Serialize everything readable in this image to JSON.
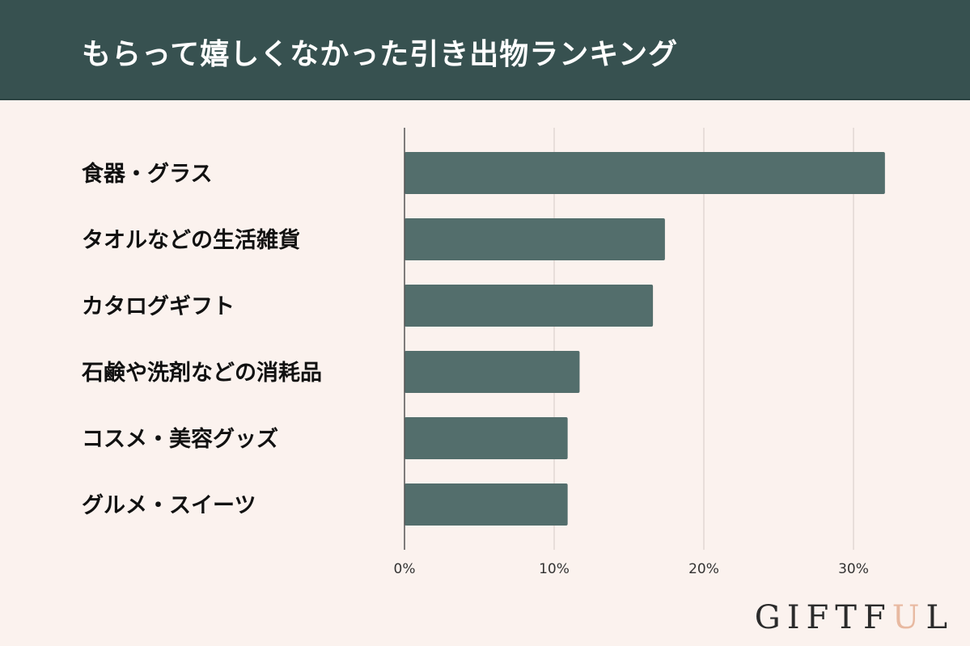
{
  "header": {
    "title": "もらって嬉しくなかった引き出物ランキング"
  },
  "brand": {
    "text_before": "GIFTF",
    "accent_letter": "U",
    "text_after": "L",
    "accent_color": "#e8b9a1"
  },
  "colors": {
    "bar": "#536e6c",
    "header_bg": "#375150",
    "background": "#fbf2ee",
    "grid": "#e2d8d4",
    "axis": "#555555"
  },
  "chart_data": {
    "type": "bar",
    "orientation": "horizontal",
    "title": "もらって嬉しくなかった引き出物ランキング",
    "categories": [
      "食器・グラス",
      "タオルなどの生活雑貨",
      "カタログギフト",
      "石鹸や洗剤などの消耗品",
      "コスメ・美容グッズ",
      "グルメ・スイーツ"
    ],
    "values": [
      32.1,
      17.4,
      16.6,
      11.7,
      10.9,
      10.9
    ],
    "unit": "%",
    "xlim": [
      0,
      35
    ],
    "xticks": [
      0,
      10,
      20,
      30
    ],
    "xtick_labels": [
      "0%",
      "10%",
      "20%",
      "30%"
    ],
    "grid": true,
    "legend": "none"
  }
}
